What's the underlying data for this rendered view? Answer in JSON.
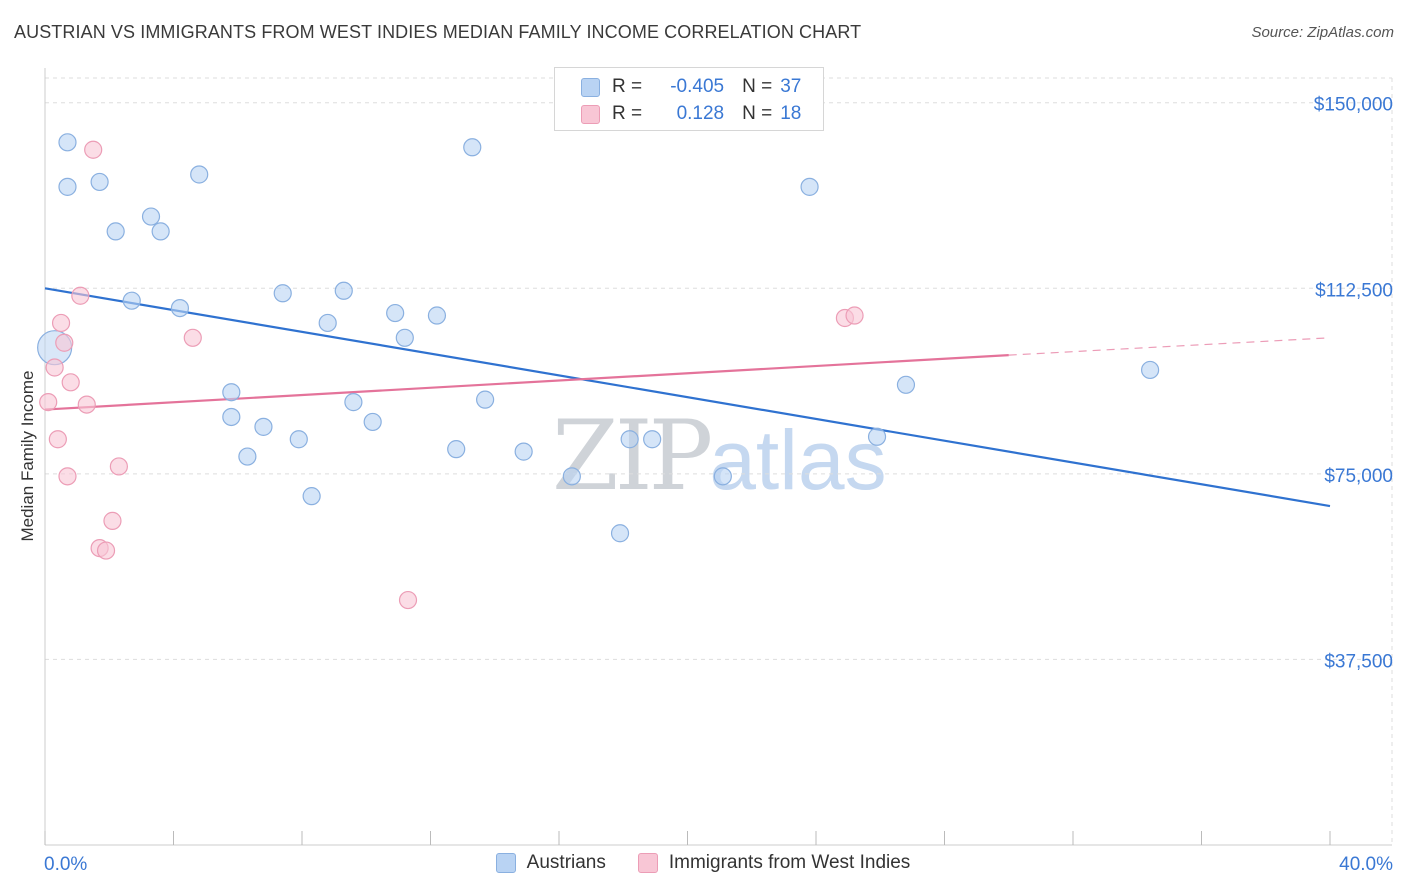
{
  "title": "AUSTRIAN VS IMMIGRANTS FROM WEST INDIES MEDIAN FAMILY INCOME CORRELATION CHART",
  "source": "Source: ZipAtlas.com",
  "watermark": {
    "zip": "ZIP",
    "atlas": "atlas"
  },
  "colors": {
    "blue_fill": "#b9d3f3",
    "blue_stroke": "#8ab0e0",
    "blue_line": "#2f72d0",
    "pink_fill": "#f8c6d5",
    "pink_stroke": "#ec9db6",
    "pink_line": "#e4739a",
    "axis_text": "#3a78d4",
    "grid": "#dddddd"
  },
  "legend": {
    "rows": [
      {
        "r_label": "R =",
        "r_value": "-0.405",
        "n_label": "N =",
        "n_value": "37"
      },
      {
        "r_label": "R =",
        "r_value": "0.128",
        "n_label": "N =",
        "n_value": "18"
      }
    ]
  },
  "bottom_legend": [
    "Austrians",
    "Immigrants from West Indies"
  ],
  "chart_data": {
    "type": "scatter",
    "title": "AUSTRIAN VS IMMIGRANTS FROM WEST INDIES MEDIAN FAMILY INCOME CORRELATION CHART",
    "xlabel": "",
    "ylabel": "Median Family Income",
    "xlim": [
      0,
      0.4
    ],
    "ylim": [
      0,
      155000
    ],
    "x_tick_labels": [
      "0.0%",
      "40.0%"
    ],
    "y_ticks": [
      37500,
      75000,
      112500,
      150000
    ],
    "y_tick_labels": [
      "$37,500",
      "$75,000",
      "$112,500",
      "$150,000"
    ],
    "grid": true,
    "series": [
      {
        "name": "Austrians",
        "r": -0.405,
        "n": 37,
        "points": [
          [
            0.003,
            100500
          ],
          [
            0.007,
            142000
          ],
          [
            0.007,
            133000
          ],
          [
            0.017,
            134000
          ],
          [
            0.022,
            124000
          ],
          [
            0.027,
            110000
          ],
          [
            0.033,
            127000
          ],
          [
            0.036,
            124000
          ],
          [
            0.042,
            108500
          ],
          [
            0.048,
            135500
          ],
          [
            0.058,
            86500
          ],
          [
            0.058,
            91500
          ],
          [
            0.063,
            78500
          ],
          [
            0.068,
            84500
          ],
          [
            0.074,
            111500
          ],
          [
            0.079,
            82000
          ],
          [
            0.083,
            70500
          ],
          [
            0.088,
            105500
          ],
          [
            0.093,
            112000
          ],
          [
            0.096,
            89500
          ],
          [
            0.102,
            85500
          ],
          [
            0.109,
            107500
          ],
          [
            0.112,
            102500
          ],
          [
            0.122,
            107000
          ],
          [
            0.128,
            80000
          ],
          [
            0.133,
            141000
          ],
          [
            0.137,
            90000
          ],
          [
            0.149,
            79500
          ],
          [
            0.164,
            74500
          ],
          [
            0.179,
            63000
          ],
          [
            0.182,
            82000
          ],
          [
            0.189,
            82000
          ],
          [
            0.211,
            74500
          ],
          [
            0.238,
            133000
          ],
          [
            0.259,
            82500
          ],
          [
            0.268,
            93000
          ],
          [
            0.344,
            96000
          ]
        ],
        "trend": {
          "x0": 0.0,
          "y0": 112500,
          "x1": 0.4,
          "y1": 68500
        }
      },
      {
        "name": "Immigrants from West Indies",
        "r": 0.128,
        "n": 18,
        "points": [
          [
            0.001,
            89500
          ],
          [
            0.003,
            96500
          ],
          [
            0.004,
            82000
          ],
          [
            0.005,
            105500
          ],
          [
            0.006,
            101500
          ],
          [
            0.007,
            74500
          ],
          [
            0.008,
            93500
          ],
          [
            0.011,
            111000
          ],
          [
            0.013,
            89000
          ],
          [
            0.015,
            140500
          ],
          [
            0.017,
            60000
          ],
          [
            0.019,
            59500
          ],
          [
            0.021,
            65500
          ],
          [
            0.023,
            76500
          ],
          [
            0.046,
            102500
          ],
          [
            0.113,
            49500
          ],
          [
            0.249,
            106500
          ],
          [
            0.252,
            107000
          ]
        ],
        "trend": {
          "x0": 0.0,
          "y0": 88000,
          "x1": 0.3,
          "y1": 99000
        },
        "trend_dashed": {
          "x0": 0.3,
          "y0": 99000,
          "x1": 0.4,
          "y1": 102500
        }
      }
    ]
  }
}
